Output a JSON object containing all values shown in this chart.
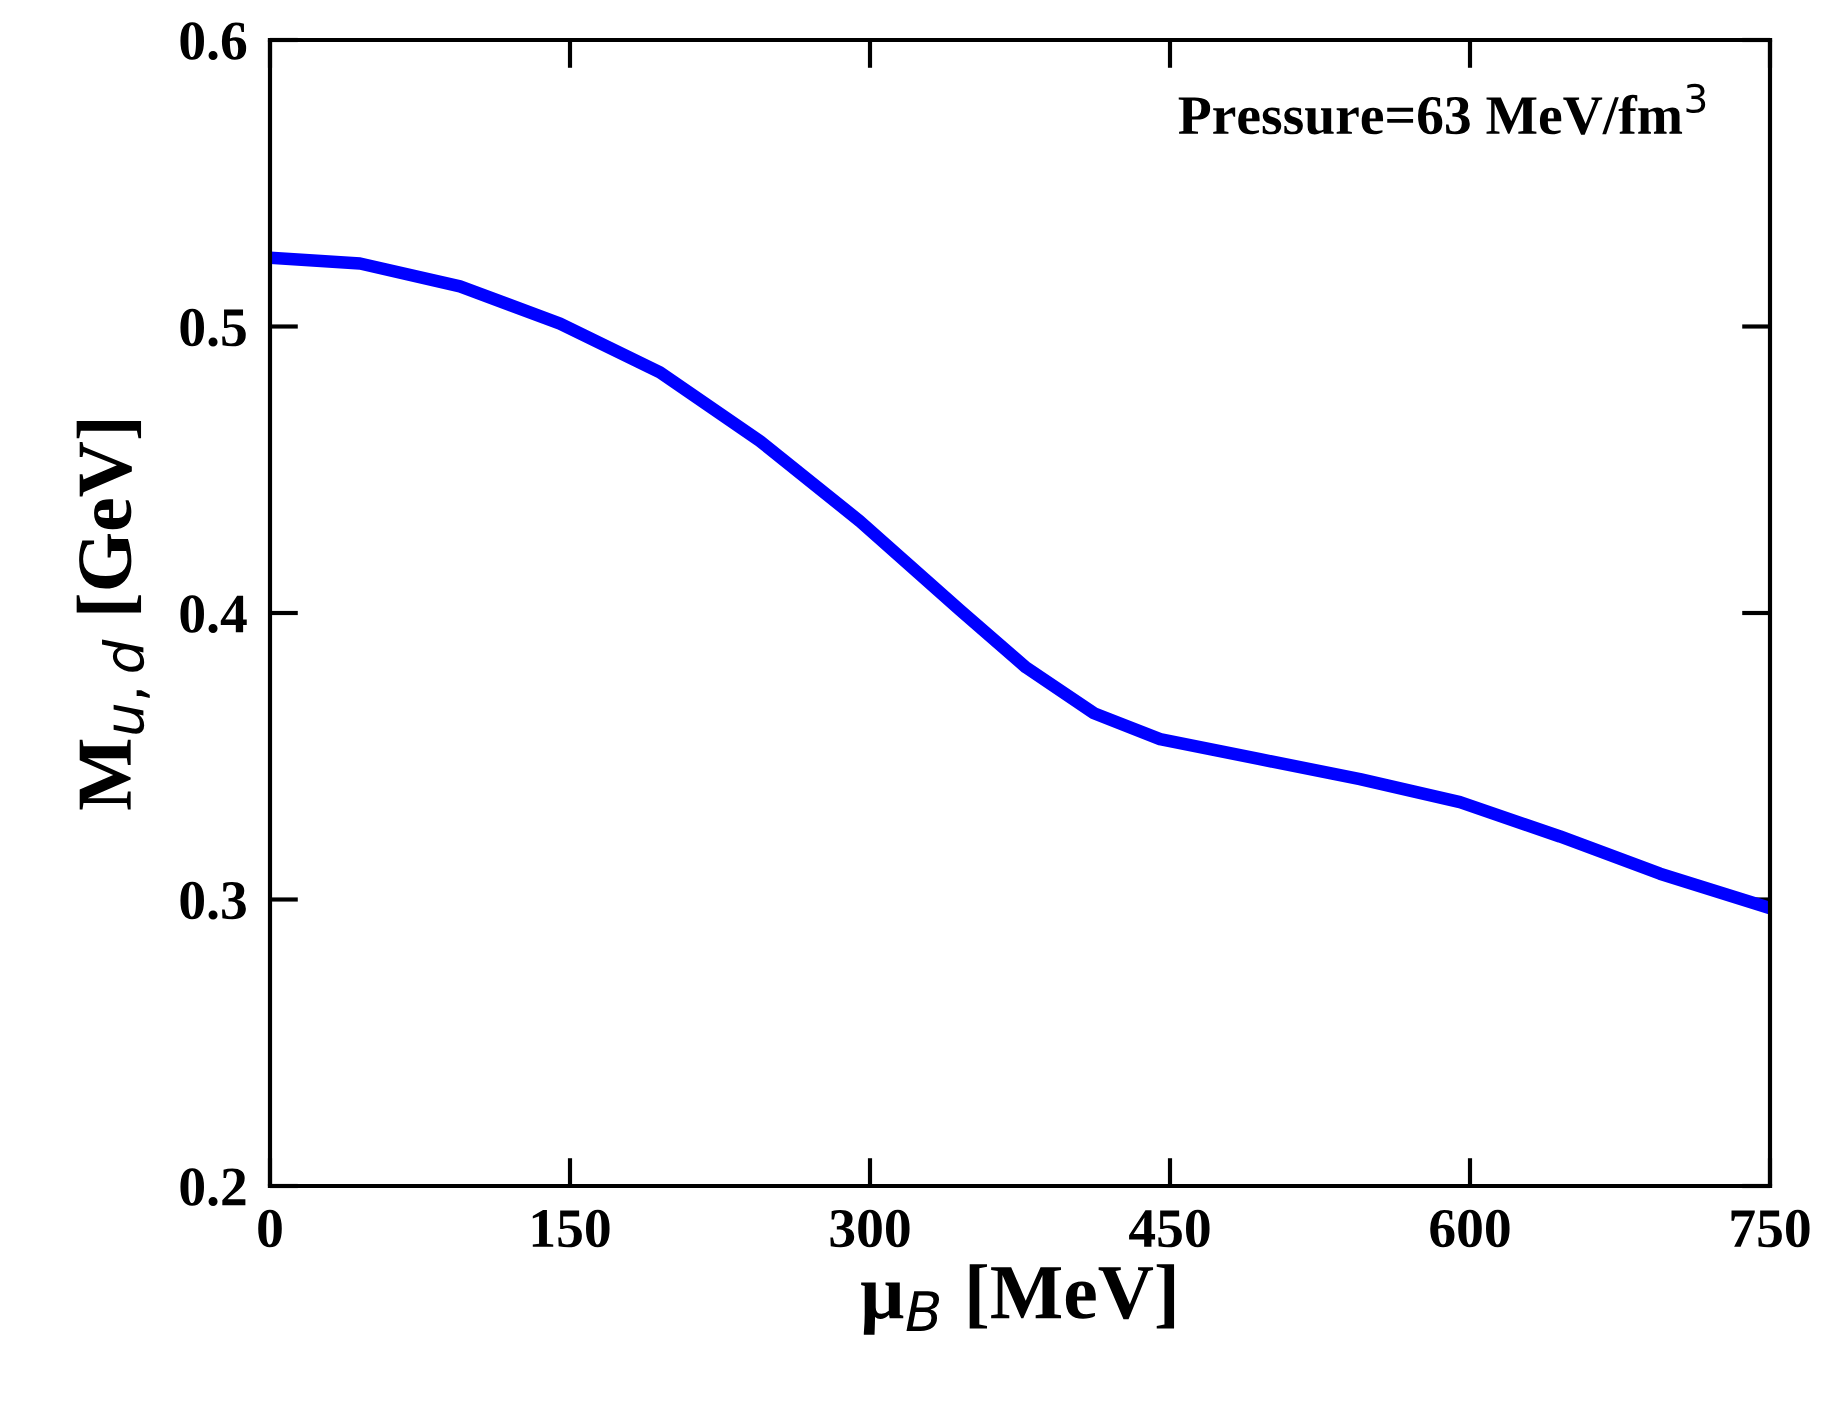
{
  "chart_data": {
    "type": "line",
    "xlabel": "μ$_{B}$ [MeV]",
    "ylabel": "M$_{u,d}$ [GeV]",
    "annotations": [
      "Pressure=63 MeV/fm$^{3}$"
    ],
    "series": [
      {
        "color": "#0000ff",
        "x": [
          0,
          45,
          95,
          145,
          195,
          245,
          295,
          345,
          378,
          412,
          445,
          495,
          545,
          595,
          645,
          695,
          750
        ],
        "values": [
          0.524,
          0.522,
          0.514,
          0.501,
          0.484,
          0.46,
          0.432,
          0.401,
          0.381,
          0.365,
          0.356,
          0.349,
          0.342,
          0.334,
          0.322,
          0.309,
          0.297
        ]
      }
    ],
    "xlim": [
      0,
      750
    ],
    "ylim": [
      0.2,
      0.6
    ],
    "xticks": [
      0,
      150,
      300,
      450,
      600,
      750
    ],
    "yticks": [
      0.2,
      0.3,
      0.4,
      0.5,
      0.6
    ],
    "grid": false,
    "legend": false,
    "marker": "none",
    "line_style": "solid"
  }
}
